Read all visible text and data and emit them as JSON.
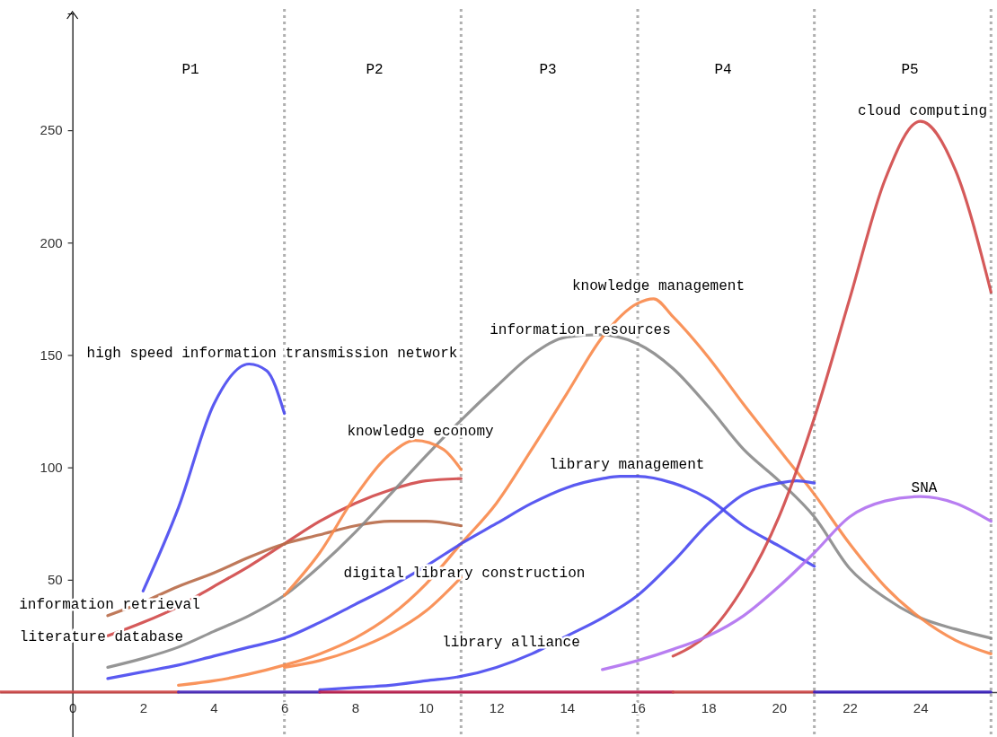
{
  "chart_data": {
    "type": "line",
    "xlim": [
      -2.05,
      26.17
    ],
    "ylim": [
      -20,
      302
    ],
    "xticks": [
      0,
      2,
      4,
      6,
      8,
      10,
      12,
      14,
      16,
      18,
      20,
      22,
      24
    ],
    "yticks": [
      50,
      100,
      150,
      200,
      250
    ],
    "grid": false,
    "line_style": "solid",
    "marker": "none",
    "series": [
      {
        "name": "high speed information transmission network",
        "color": "#4848f0",
        "x": [
          2,
          3,
          4,
          5,
          5.5,
          6
        ],
        "values": [
          45,
          82,
          128,
          146,
          143,
          124
        ]
      },
      {
        "name": "literature database",
        "color": "#d04848",
        "x": [
          1,
          2,
          3,
          4,
          5,
          6,
          7,
          8,
          9,
          10,
          11
        ],
        "values": [
          25,
          31,
          38,
          47,
          56,
          66,
          76,
          84,
          90,
          94,
          95
        ]
      },
      {
        "name": "information retrieval",
        "color": "#b86a48",
        "x": [
          1,
          2,
          3,
          4,
          5,
          6,
          7,
          8,
          9,
          10,
          11
        ],
        "values": [
          34,
          40,
          47,
          53,
          60,
          66,
          70,
          74,
          76,
          76,
          74
        ]
      },
      {
        "name": "information resources",
        "color": "#8a8a8a",
        "x": [
          1,
          2,
          3,
          4,
          5,
          6,
          7,
          8,
          9,
          10,
          11,
          12,
          13,
          14,
          14.9,
          16,
          17,
          18,
          19,
          20,
          21,
          22,
          23,
          24,
          25,
          26
        ],
        "values": [
          11,
          15,
          20,
          27,
          34,
          43,
          56,
          71,
          88,
          105,
          121,
          136,
          150,
          158,
          159,
          155,
          144,
          127,
          108,
          94,
          78,
          55,
          42,
          33,
          28,
          24
        ]
      },
      {
        "name": "knowledge economy",
        "color": "#f8884a",
        "x": [
          6,
          7,
          8,
          9,
          9.7,
          10.5,
          11
        ],
        "values": [
          43,
          62,
          87,
          106,
          112,
          108,
          99
        ]
      },
      {
        "name": "knowledge management",
        "color": "#f8884a",
        "x": [
          3,
          4,
          5,
          6,
          7,
          8,
          9,
          10,
          11,
          12,
          13,
          14,
          15,
          16,
          16.45,
          17,
          18,
          19,
          20,
          21,
          22,
          23,
          24,
          25,
          26
        ],
        "values": [
          3,
          5,
          8,
          12,
          17,
          24,
          34,
          48,
          66,
          84,
          108,
          133,
          158,
          173,
          175,
          167,
          149,
          128,
          108,
          88,
          66,
          47,
          33,
          23,
          17
        ]
      },
      {
        "name": "digital library construction",
        "color": "#f8884a",
        "x": [
          6,
          7,
          8,
          9,
          10,
          11
        ],
        "values": [
          11,
          14,
          19,
          26,
          36,
          51
        ]
      },
      {
        "name": "library management",
        "color": "#4848f0",
        "x": [
          1,
          2,
          3,
          4,
          5,
          6,
          7,
          8,
          9,
          10,
          11,
          12,
          13,
          14,
          15,
          15.5,
          16,
          17,
          18,
          19,
          20,
          21
        ],
        "values": [
          6,
          9,
          12,
          16,
          20,
          24,
          31,
          39,
          47,
          56,
          66,
          75,
          84,
          91,
          95,
          96,
          96,
          93,
          86,
          74,
          65,
          56
        ]
      },
      {
        "name": "library alliance",
        "color": "#4848f0",
        "x": [
          7,
          8,
          9,
          10,
          11,
          12,
          13,
          14,
          15,
          16,
          17,
          18,
          19,
          20,
          20.5,
          21
        ],
        "values": [
          1,
          2,
          3,
          5,
          7,
          11,
          17,
          25,
          33,
          43,
          58,
          75,
          88,
          93,
          94,
          93
        ]
      },
      {
        "name": "cloud computing",
        "color": "#d04848",
        "x": [
          17,
          18,
          19,
          20,
          21,
          22,
          23,
          24,
          25,
          26
        ],
        "values": [
          16,
          26,
          47,
          78,
          122,
          175,
          228,
          254,
          232,
          178
        ]
      },
      {
        "name": "SNA",
        "color": "#b070f0",
        "x": [
          15,
          16,
          17,
          18,
          19,
          20,
          21,
          22,
          23,
          24,
          25,
          26
        ],
        "values": [
          10,
          14,
          19,
          25,
          34,
          47,
          62,
          78,
          85,
          87,
          84,
          76
        ]
      },
      {
        "color": "#d04848",
        "x": [
          -2.05,
          3
        ],
        "values": [
          0,
          0
        ]
      },
      {
        "color": "#4a2ac0",
        "x": [
          3,
          7
        ],
        "values": [
          0,
          0
        ]
      },
      {
        "color": "#c02050",
        "x": [
          7,
          17
        ],
        "values": [
          0,
          0
        ]
      },
      {
        "color": "#d04848",
        "x": [
          17,
          21
        ],
        "values": [
          0,
          0
        ]
      },
      {
        "color": "#3a20c0",
        "x": [
          21,
          26
        ],
        "values": [
          0,
          0
        ]
      }
    ],
    "ref_lines": [
      {
        "axis": "x",
        "value": 6,
        "color": "#b0b0b0",
        "line_style": "dotted"
      },
      {
        "axis": "x",
        "value": 11,
        "color": "#b0b0b0",
        "line_style": "dotted"
      },
      {
        "axis": "x",
        "value": 16,
        "color": "#b0b0b0",
        "line_style": "dotted"
      },
      {
        "axis": "x",
        "value": 21,
        "color": "#b0b0b0",
        "line_style": "dotted"
      },
      {
        "axis": "x",
        "value": 26,
        "color": "#b0b0b0",
        "line_style": "dotted"
      }
    ],
    "annotations": [
      "P1",
      "P2",
      "P3",
      "P4",
      "P5"
    ]
  }
}
